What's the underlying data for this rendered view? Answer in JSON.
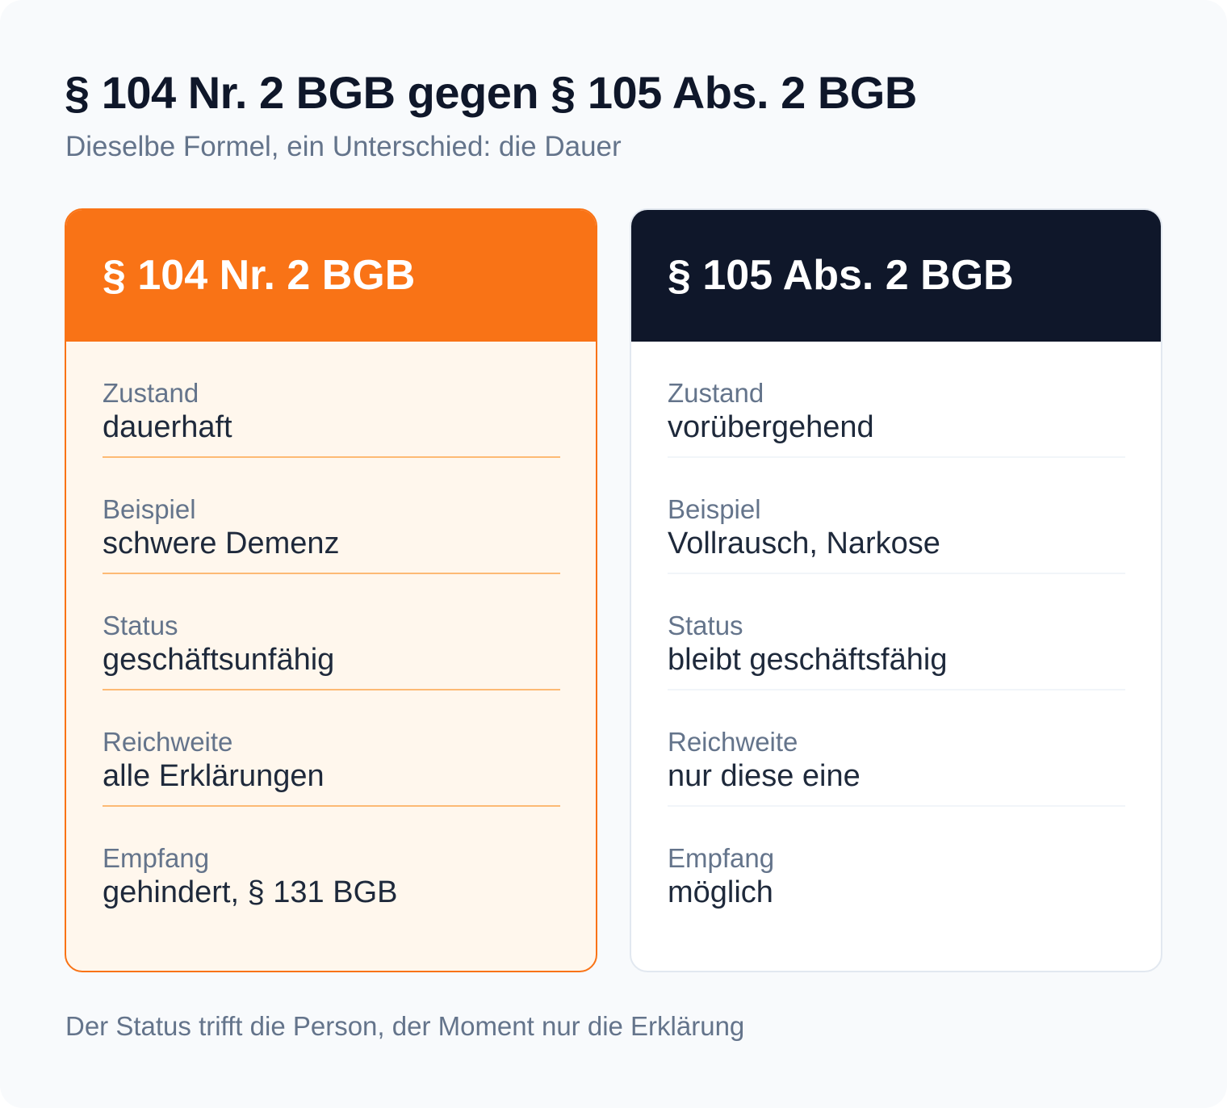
{
  "header": {
    "title": "§ 104 Nr. 2 BGB gegen § 105 Abs. 2 BGB",
    "subtitle": "Dieselbe Formel, ein Unterschied: die Dauer"
  },
  "cards": [
    {
      "title": "§ 104 Nr. 2 BGB",
      "accent": "#f97316",
      "rows": [
        {
          "label": "Zustand",
          "value": "dauerhaft"
        },
        {
          "label": "Beispiel",
          "value": "schwere Demenz"
        },
        {
          "label": "Status",
          "value": "geschäftsunfähig"
        },
        {
          "label": "Reichweite",
          "value": "alle Erklärungen"
        },
        {
          "label": "Empfang",
          "value": "gehindert, § 131 BGB"
        }
      ]
    },
    {
      "title": "§ 105 Abs. 2 BGB",
      "accent": "#0f172a",
      "rows": [
        {
          "label": "Zustand",
          "value": "vorübergehend"
        },
        {
          "label": "Beispiel",
          "value": "Vollrausch, Narkose"
        },
        {
          "label": "Status",
          "value": "bleibt geschäftsfähig"
        },
        {
          "label": "Reichweite",
          "value": "nur diese eine"
        },
        {
          "label": "Empfang",
          "value": "möglich"
        }
      ]
    }
  ],
  "footer": "Der Status trifft die Person, der Moment nur die Erklärung"
}
